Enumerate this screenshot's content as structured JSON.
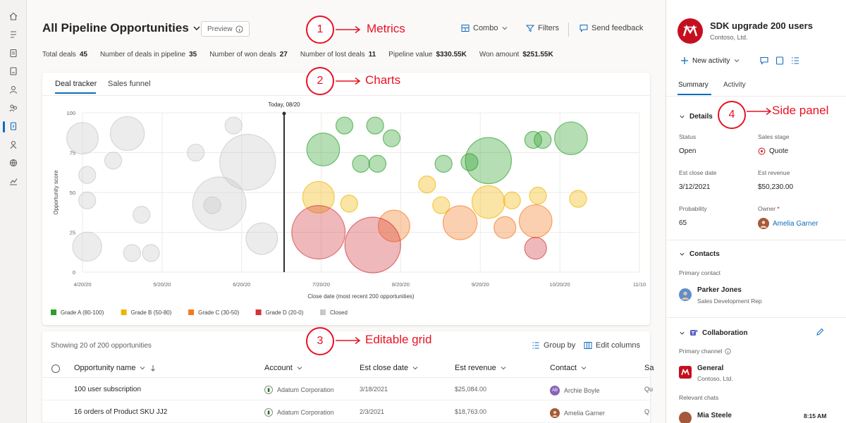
{
  "view": {
    "title": "All Pipeline Opportunities",
    "preview": "Preview"
  },
  "commands": {
    "combo": "Combo",
    "filters": "Filters",
    "feedback": "Send feedback"
  },
  "metrics": [
    {
      "label": "Total deals",
      "value": "45"
    },
    {
      "label": "Number of deals in pipeline",
      "value": "35"
    },
    {
      "label": "Number of won deals",
      "value": "27"
    },
    {
      "label": "Number of lost deals",
      "value": "11"
    },
    {
      "label": "Pipeline value",
      "value": "$330.55K"
    },
    {
      "label": "Won amount",
      "value": "$251.55K"
    }
  ],
  "chart_tabs": [
    "Deal tracker",
    "Sales funnel"
  ],
  "chart_data": {
    "type": "scatter",
    "xlabel": "Close date (most recent 200 opportunities)",
    "ylabel": "Opportunity score",
    "x_ticks": [
      "4/20/20",
      "5/20/20",
      "6/20/20",
      "7/20/20",
      "8/20/20",
      "9/20/20",
      "10/20/20",
      "11/10"
    ],
    "y_ticks": [
      0,
      25,
      50,
      75,
      100
    ],
    "ylim": [
      0,
      100
    ],
    "today_label": "Today, 08/20",
    "grid": true,
    "legend_position": "bottom-left",
    "legend": [
      {
        "label": "Grade A (80-100)",
        "color": "#2ca02c"
      },
      {
        "label": "Grade B (50-80)",
        "color": "#f0b400"
      },
      {
        "label": "Grade C (30-50)",
        "color": "#f4791f"
      },
      {
        "label": "Grade D (20-0)",
        "color": "#d13438"
      },
      {
        "label": "Closed",
        "color": "#c8c8c8"
      }
    ],
    "series": [
      {
        "name": "Closed",
        "color": "#c8c8c8",
        "points": [
          {
            "x": 1.0,
            "y": 84,
            "r": 2.6
          },
          {
            "x": 1.95,
            "y": 87,
            "r": 2.8
          },
          {
            "x": 1.65,
            "y": 70,
            "r": 1.4
          },
          {
            "x": 1.1,
            "y": 61,
            "r": 1.4
          },
          {
            "x": 1.1,
            "y": 45,
            "r": 1.4
          },
          {
            "x": 2.25,
            "y": 36,
            "r": 1.4
          },
          {
            "x": 1.1,
            "y": 16,
            "r": 2.4
          },
          {
            "x": 2.05,
            "y": 12,
            "r": 1.4
          },
          {
            "x": 2.45,
            "y": 12,
            "r": 1.4
          },
          {
            "x": 3.4,
            "y": 75,
            "r": 1.4
          },
          {
            "x": 4.2,
            "y": 92,
            "r": 1.4
          },
          {
            "x": 4.5,
            "y": 69,
            "r": 4.6
          },
          {
            "x": 3.9,
            "y": 43,
            "r": 4.4
          },
          {
            "x": 3.75,
            "y": 42,
            "r": 1.4
          },
          {
            "x": 4.8,
            "y": 21,
            "r": 2.6
          }
        ]
      },
      {
        "name": "Grade A (80-100)",
        "color": "#2ca02c",
        "points": [
          {
            "x": 6.1,
            "y": 77,
            "r": 2.7
          },
          {
            "x": 6.55,
            "y": 92,
            "r": 1.4
          },
          {
            "x": 7.2,
            "y": 92,
            "r": 1.4
          },
          {
            "x": 7.55,
            "y": 84,
            "r": 1.4
          },
          {
            "x": 6.9,
            "y": 68,
            "r": 1.4
          },
          {
            "x": 7.25,
            "y": 68,
            "r": 1.4
          },
          {
            "x": 8.65,
            "y": 68,
            "r": 1.4
          },
          {
            "x": 9.2,
            "y": 69,
            "r": 1.4
          },
          {
            "x": 9.6,
            "y": 70,
            "r": 3.8
          },
          {
            "x": 10.55,
            "y": 83,
            "r": 1.4
          },
          {
            "x": 10.75,
            "y": 83,
            "r": 1.4
          },
          {
            "x": 11.35,
            "y": 84,
            "r": 2.7
          }
        ]
      },
      {
        "name": "Grade B (50-80)",
        "color": "#f0b400",
        "points": [
          {
            "x": 6.0,
            "y": 47,
            "r": 2.6
          },
          {
            "x": 6.65,
            "y": 43,
            "r": 1.4
          },
          {
            "x": 8.3,
            "y": 55,
            "r": 1.4
          },
          {
            "x": 8.6,
            "y": 42,
            "r": 1.4
          },
          {
            "x": 9.6,
            "y": 44,
            "r": 2.7
          },
          {
            "x": 10.1,
            "y": 45,
            "r": 1.4
          },
          {
            "x": 10.65,
            "y": 48,
            "r": 1.4
          },
          {
            "x": 11.5,
            "y": 46,
            "r": 1.4
          }
        ]
      },
      {
        "name": "Grade C (30-50)",
        "color": "#f4791f",
        "points": [
          {
            "x": 7.6,
            "y": 29,
            "r": 2.6
          },
          {
            "x": 9.0,
            "y": 31,
            "r": 2.8
          },
          {
            "x": 9.95,
            "y": 28,
            "r": 1.8
          },
          {
            "x": 10.6,
            "y": 32,
            "r": 2.7
          }
        ]
      },
      {
        "name": "Grade D (20-0)",
        "color": "#d13438",
        "points": [
          {
            "x": 6.0,
            "y": 25,
            "r": 4.4
          },
          {
            "x": 7.15,
            "y": 17,
            "r": 4.6
          },
          {
            "x": 10.6,
            "y": 15,
            "r": 1.8
          }
        ]
      }
    ]
  },
  "grid": {
    "showing": "Showing 20 of 200 opportunities",
    "group_by": "Group by",
    "edit_columns": "Edit columns",
    "columns": [
      "Opportunity name",
      "Account",
      "Est close date",
      "Est revenue",
      "Contact",
      "Sa"
    ],
    "rows": [
      {
        "name": "100 user subscription",
        "account": "Adatum Corporation",
        "close": "3/18/2021",
        "revenue": "$25,084.00",
        "contact": "Archie Boyle",
        "contact_initials": "AB",
        "extra": "Qu"
      },
      {
        "name": "16 orders of Product SKU JJ2",
        "account": "Adatum Corporation",
        "close": "2/3/2021",
        "revenue": "$18,763.00",
        "contact": "Amelia Garner",
        "contact_initials": "",
        "extra": "Q"
      }
    ]
  },
  "side": {
    "record_title": "SDK upgrade 200 users",
    "record_sub": "Contoso, Ltd.",
    "new_activity": "New activity",
    "tabs": [
      "Summary",
      "Activity"
    ],
    "details": {
      "header": "Details",
      "status_label": "Status",
      "status_value": "Open",
      "stage_label": "Sales stage",
      "stage_value": "Quote",
      "close_label": "Est close date",
      "close_value": "3/12/2021",
      "revenue_label": "Est revenue",
      "revenue_value": "$50,230.00",
      "prob_label": "Probability",
      "prob_value": "65",
      "owner_label": "Owner",
      "owner_req": "*",
      "owner_value": "Amelia Garner"
    },
    "contacts": {
      "header": "Contacts",
      "primary_label": "Primary contact",
      "name": "Parker Jones",
      "role": "Sales Development Rep"
    },
    "collab": {
      "header": "Collaboration",
      "channel_label": "Primary channel",
      "channel_name": "General",
      "channel_org": "Contoso, Ltd.",
      "chats_label": "Relevant chats",
      "chat_name": "Mia Steele",
      "chat_time": "8:15 AM"
    }
  },
  "annotations": [
    {
      "number": "1",
      "label": "Metrics"
    },
    {
      "number": "2",
      "label": "Charts"
    },
    {
      "number": "3",
      "label": "Editable grid"
    },
    {
      "number": "4",
      "label": "Side panel"
    }
  ],
  "colors": {
    "accent": "#0f6cbd",
    "annotation": "#e81123",
    "brand_record": "#c50f1f"
  }
}
